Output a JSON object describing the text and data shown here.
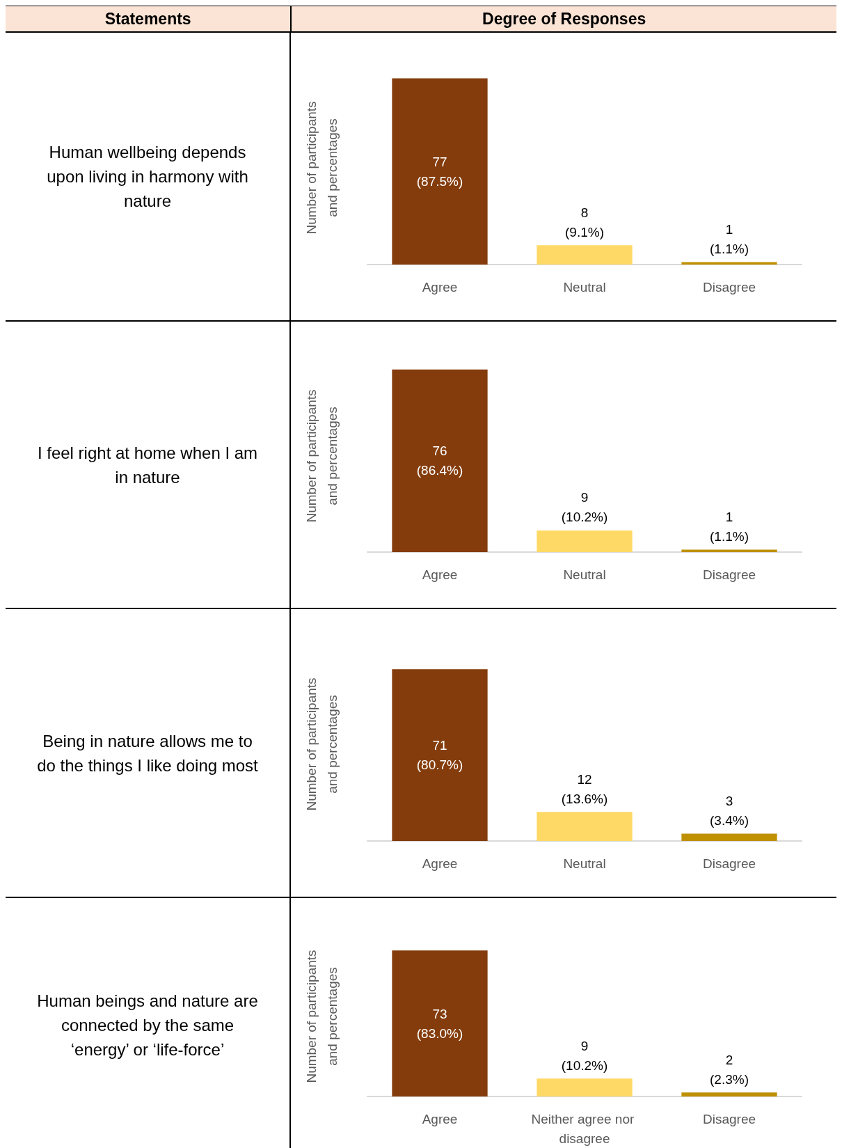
{
  "chart_data": [
    {
      "type": "other",
      "annotations": [
        "Statements",
        "Degree of Responses",
        "Human wellbeing depends upon living in harmony with nature",
        "I feel right at home when I am in nature",
        "Being in nature allows me to do the things I like doing most",
        "Human beings and nature are connected by the same ‘energy’ or ‘life-force’"
      ]
    },
    {
      "type": "bar",
      "ylabel": "Number of participants\nand percentages",
      "categories": [
        "Agree",
        "Neutral",
        "Disagree"
      ],
      "values": [
        77,
        8,
        1
      ],
      "colors": [
        "#843c0c",
        "#ffd966",
        "#bf9000"
      ],
      "value_labels": [
        "77\n(87.5%)",
        "8\n(9.1%)",
        "1\n(1.1%)"
      ],
      "grid": false
    },
    {
      "type": "bar",
      "ylabel": "Number of participants\nand percentages",
      "categories": [
        "Agree",
        "Neutral",
        "Disagree"
      ],
      "values": [
        76,
        9,
        1
      ],
      "colors": [
        "#843c0c",
        "#ffd966",
        "#bf9000"
      ],
      "value_labels": [
        "76\n(86.4%)",
        "9\n(10.2%)",
        "1\n(1.1%)"
      ],
      "grid": false
    },
    {
      "type": "bar",
      "ylabel": "Number of participants\nand percentages",
      "categories": [
        "Agree",
        "Neutral",
        "Disagree"
      ],
      "values": [
        71,
        12,
        3
      ],
      "colors": [
        "#843c0c",
        "#ffd966",
        "#bf9000"
      ],
      "value_labels": [
        "71\n(80.7%)",
        "12\n(13.6%)",
        "3\n(3.4%)"
      ],
      "grid": false
    },
    {
      "type": "bar",
      "ylabel": "Number of participants\nand percentages",
      "categories": [
        "Agree",
        "Neither agree nor disagree",
        "Disagree"
      ],
      "values": [
        73,
        9,
        2
      ],
      "colors": [
        "#843c0c",
        "#ffd966",
        "#bf9000"
      ],
      "value_labels": [
        "73\n(83.0%)",
        "9\n(10.2%)",
        "2\n(2.3%)"
      ],
      "grid": false
    }
  ]
}
